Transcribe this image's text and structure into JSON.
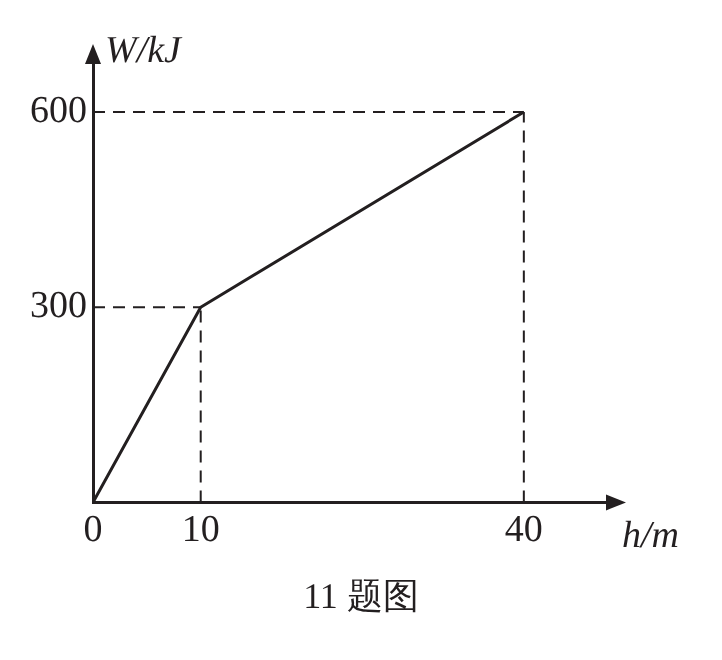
{
  "chart_data": {
    "type": "line",
    "xlabel": "h/m",
    "ylabel": "W/kJ",
    "x": [
      0,
      10,
      40
    ],
    "series": [
      {
        "color": "#231f20",
        "values": [
          0,
          300,
          600
        ]
      }
    ],
    "xlim": [
      0,
      48
    ],
    "ylim": [
      0,
      680
    ],
    "xticks": [
      0,
      10,
      40
    ],
    "yticks": [
      300,
      600
    ],
    "ref_lines": [
      {
        "axis": "x",
        "value": 10,
        "line_style": "dashed"
      },
      {
        "axis": "x",
        "value": 40,
        "line_style": "dashed"
      },
      {
        "axis": "y",
        "value": 300,
        "line_style": "dashed"
      },
      {
        "axis": "y",
        "value": 600,
        "line_style": "dashed"
      }
    ],
    "grid": false,
    "legend": false,
    "marker": "none",
    "line_style": "solid",
    "annotations": [
      "11 题图"
    ]
  }
}
